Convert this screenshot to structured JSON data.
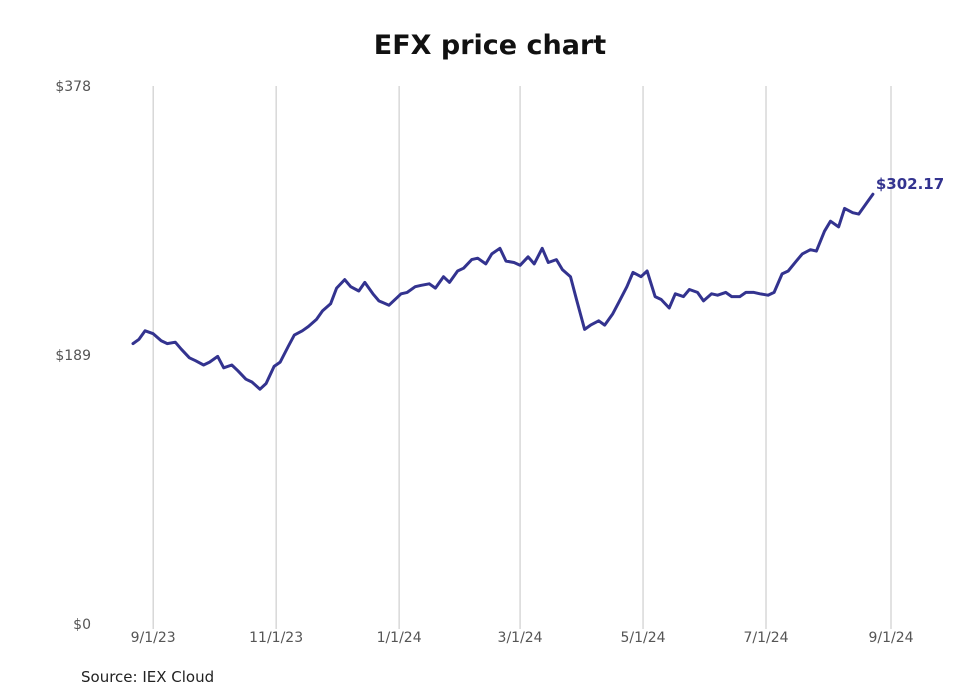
{
  "chart_data": {
    "type": "line",
    "title": "EFX price chart",
    "source": "Source: IEX Cloud",
    "xlabel": "",
    "ylabel": "",
    "xlim": [
      "2023-08-22",
      "2024-09-01"
    ],
    "ylim": [
      0,
      378
    ],
    "y_ticks": [
      {
        "value": 0,
        "label": "$0"
      },
      {
        "value": 189,
        "label": "$189"
      },
      {
        "value": 378,
        "label": "$378"
      }
    ],
    "x_ticks": [
      {
        "date": "2023-09-01",
        "label": "9/1/23"
      },
      {
        "date": "2023-11-01",
        "label": "11/1/23"
      },
      {
        "date": "2024-01-01",
        "label": "1/1/24"
      },
      {
        "date": "2024-03-01",
        "label": "3/1/24"
      },
      {
        "date": "2024-05-01",
        "label": "5/1/24"
      },
      {
        "date": "2024-07-01",
        "label": "7/1/24"
      },
      {
        "date": "2024-09-01",
        "label": "9/1/24"
      }
    ],
    "grid": {
      "vertical": true,
      "horizontal": false
    },
    "line_color": "#33338f",
    "last_value_label": "$302.17",
    "series": [
      {
        "x": [
          "2023-08-22",
          "2023-08-25",
          "2023-08-28",
          "2023-09-01",
          "2023-09-05",
          "2023-09-08",
          "2023-09-12",
          "2023-09-15",
          "2023-09-19",
          "2023-09-22",
          "2023-09-26",
          "2023-09-29",
          "2023-10-03",
          "2023-10-06",
          "2023-10-10",
          "2023-10-13",
          "2023-10-17",
          "2023-10-20",
          "2023-10-24",
          "2023-10-27",
          "2023-10-31",
          "2023-11-03",
          "2023-11-07",
          "2023-11-10",
          "2023-11-14",
          "2023-11-17",
          "2023-11-21",
          "2023-11-24",
          "2023-11-28",
          "2023-12-01",
          "2023-12-05",
          "2023-12-08",
          "2023-12-12",
          "2023-12-15",
          "2023-12-19",
          "2023-12-22",
          "2023-12-27",
          "2024-01-02",
          "2024-01-05",
          "2024-01-09",
          "2024-01-12",
          "2024-01-16",
          "2024-01-19",
          "2024-01-23",
          "2024-01-26",
          "2024-01-30",
          "2024-02-02",
          "2024-02-06",
          "2024-02-09",
          "2024-02-13",
          "2024-02-16",
          "2024-02-20",
          "2024-02-23",
          "2024-02-27",
          "2024-03-01",
          "2024-03-05",
          "2024-03-08",
          "2024-03-12",
          "2024-03-15",
          "2024-03-19",
          "2024-03-22",
          "2024-03-26",
          "2024-03-29",
          "2024-04-02",
          "2024-04-05",
          "2024-04-09",
          "2024-04-12",
          "2024-04-16",
          "2024-04-19",
          "2024-04-23",
          "2024-04-26",
          "2024-04-30",
          "2024-05-03",
          "2024-05-07",
          "2024-05-10",
          "2024-05-14",
          "2024-05-17",
          "2024-05-21",
          "2024-05-24",
          "2024-05-28",
          "2024-05-31",
          "2024-06-04",
          "2024-06-07",
          "2024-06-11",
          "2024-06-14",
          "2024-06-18",
          "2024-06-21",
          "2024-06-25",
          "2024-06-28",
          "2024-07-02",
          "2024-07-05",
          "2024-07-09",
          "2024-07-12",
          "2024-07-16",
          "2024-07-19",
          "2024-07-23",
          "2024-07-26",
          "2024-07-30",
          "2024-08-02",
          "2024-08-06",
          "2024-08-09",
          "2024-08-13",
          "2024-08-16",
          "2024-08-20",
          "2024-08-23"
        ],
        "y": [
          197,
          200,
          206,
          204,
          199,
          197,
          198,
          193,
          187,
          185,
          182,
          184,
          188,
          180,
          182,
          178,
          172,
          170,
          165,
          169,
          181,
          184,
          195,
          203,
          206,
          209,
          214,
          220,
          225,
          236,
          242,
          237,
          234,
          240,
          232,
          227,
          224,
          232,
          233,
          237,
          238,
          239,
          236,
          244,
          240,
          248,
          250,
          256,
          257,
          253,
          260,
          264,
          255,
          254,
          252,
          258,
          253,
          264,
          254,
          256,
          249,
          244,
          228,
          207,
          210,
          213,
          210,
          218,
          226,
          237,
          247,
          244,
          248,
          230,
          228,
          222,
          232,
          230,
          235,
          233,
          227,
          232,
          231,
          233,
          230,
          230,
          233,
          233,
          232,
          231,
          233,
          246,
          248,
          255,
          260,
          263,
          262,
          276,
          283,
          279,
          292,
          289,
          288,
          296,
          302
        ]
      }
    ]
  }
}
